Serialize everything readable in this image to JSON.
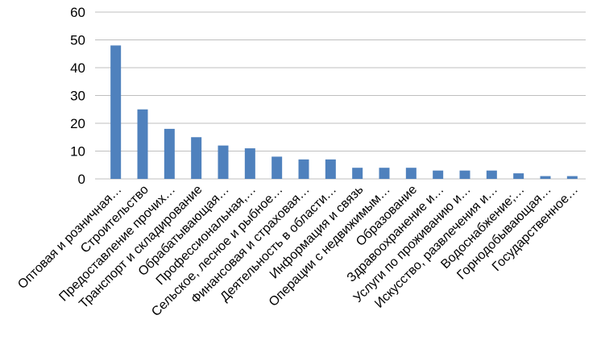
{
  "chart_data": {
    "type": "bar",
    "categories": [
      "Оптовая и розничная…",
      "Строительство",
      "Предоставление прочих…",
      "Транспорт и складирование",
      "Обрабатывающая…",
      "Профессиональная,…",
      "Сельское, лесное и рыбное…",
      "Финансовая и страховая…",
      "Деятельность в области…",
      "Информация и связь",
      "Операции с недвижимым…",
      "Образование",
      "Здравоохранение  и…",
      "Услуги по проживанию и…",
      "Искусство, развлечения и…",
      "Водоснабжение;…",
      "Горнодобывающая…",
      "Государственное…"
    ],
    "values": [
      48,
      25,
      18,
      15,
      12,
      11,
      8,
      7,
      7,
      4,
      4,
      4,
      3,
      3,
      3,
      2,
      1,
      1
    ],
    "color": "#4f81bd",
    "ylim": [
      0,
      60
    ],
    "yticks": [
      0,
      10,
      20,
      30,
      40,
      50,
      60
    ],
    "grid": true
  }
}
